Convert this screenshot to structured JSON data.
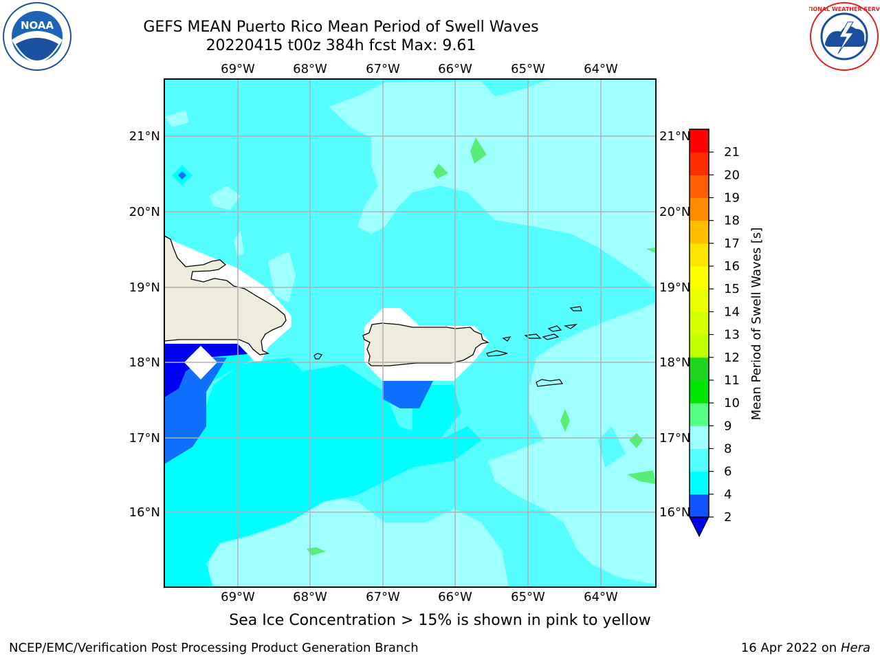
{
  "title": {
    "line1": "GEFS MEAN Puerto Rico Mean Period of Swell Waves",
    "line2": "20220415 t00z 384h fcst   Max: 9.61"
  },
  "logos": {
    "left": {
      "icon": "noaa-logo",
      "text": "NOAA"
    },
    "right": {
      "icon": "national-weather-service-logo",
      "text": "NATIONAL WEATHER SERVICE"
    }
  },
  "map": {
    "longitude_ticks": [
      "69°W",
      "68°W",
      "67°W",
      "66°W",
      "65°W",
      "64°W"
    ],
    "latitude_ticks": [
      "21°N",
      "20°N",
      "19°N",
      "18°N",
      "17°N",
      "16°N"
    ],
    "grid": true,
    "colors": {
      "land": "#eeecdc",
      "no_data": "#ffffff",
      "coastline": "#000000",
      "grid": "#b0b0b0"
    }
  },
  "colorbar": {
    "label": "Mean Period of Swell Waves [s]",
    "ticks": [
      "2",
      "4",
      "6",
      "8",
      "9",
      "10",
      "11",
      "12",
      "13",
      "14",
      "15",
      "16",
      "17",
      "18",
      "19",
      "20",
      "21"
    ],
    "colors": [
      "#0f54ff",
      "#00ffff",
      "#55ffff",
      "#a0ffff",
      "#55ff7f",
      "#00e600",
      "#1fd71f",
      "#bfff00",
      "#d4ff00",
      "#ecff00",
      "#ffff00",
      "#ffe600",
      "#ffbf00",
      "#ff8c00",
      "#ff5f00",
      "#ff2e00",
      "#ff0000"
    ],
    "under_color": "#0000f0"
  },
  "chart_data": {
    "type": "heatmap",
    "title": "GEFS MEAN Puerto Rico Mean Period of Swell Waves",
    "subtitle": "20220415 t00z 384h fcst   Max: 9.61",
    "x_ticks": [
      "69°W",
      "68°W",
      "67°W",
      "66°W",
      "65°W",
      "64°W"
    ],
    "y_ticks": [
      "21°N",
      "20°N",
      "19°N",
      "18°N",
      "17°N",
      "16°N"
    ],
    "colorbar_label": "Mean Period of Swell Waves [s]",
    "levels": [
      2,
      4,
      6,
      8,
      9,
      10,
      11,
      12,
      13,
      14,
      15,
      16,
      17,
      18,
      19,
      20,
      21
    ],
    "max": 9.61
  },
  "footer": {
    "note": "Sea Ice Concentration > 15% is shown in pink to yellow",
    "left": "NCEP/EMC/Verification Post Processing Product Generation Branch",
    "right_date": "16 Apr 2022 on ",
    "right_host": "Hera"
  }
}
